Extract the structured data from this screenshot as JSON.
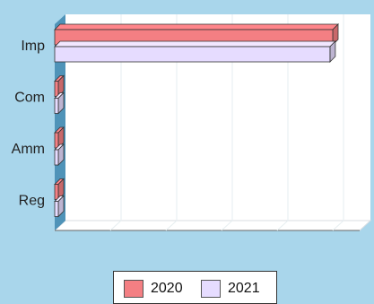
{
  "chart_data": {
    "type": "bar",
    "orientation": "horizontal",
    "style": "3d",
    "categories": [
      "Imp",
      "Com",
      "Amm",
      "Reg"
    ],
    "series": [
      {
        "name": "2020",
        "color": "#f47f83",
        "values": [
          100,
          0.5,
          0.5,
          0.5
        ]
      },
      {
        "name": "2021",
        "color": "#e6dcff",
        "values": [
          99,
          0.5,
          0.5,
          0.5
        ]
      }
    ],
    "title": "",
    "xlabel": "",
    "ylabel": "",
    "xlim": [
      0,
      100
    ],
    "grid": true,
    "legend_position": "bottom"
  },
  "legend": {
    "items": [
      {
        "label": "2020",
        "color": "#f47f83"
      },
      {
        "label": "2021",
        "color": "#e6dcff"
      }
    ]
  }
}
